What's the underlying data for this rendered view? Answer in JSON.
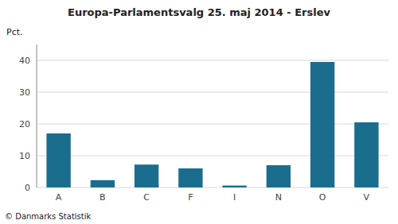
{
  "chart_data": {
    "type": "bar",
    "title": "Europa-Parlamentsvalg 25. maj 2014 - Erslev",
    "categories": [
      "A",
      "B",
      "C",
      "F",
      "I",
      "N",
      "O",
      "V"
    ],
    "values": [
      17.0,
      2.3,
      7.2,
      6.0,
      0.6,
      7.0,
      39.5,
      20.5
    ],
    "color": "#1b6d8e",
    "ylabel": "Pct.",
    "ylim": [
      0,
      45
    ],
    "yticks": [
      0,
      10,
      20,
      30,
      40
    ],
    "grid": true,
    "footer": "© Danmarks Statistik"
  }
}
